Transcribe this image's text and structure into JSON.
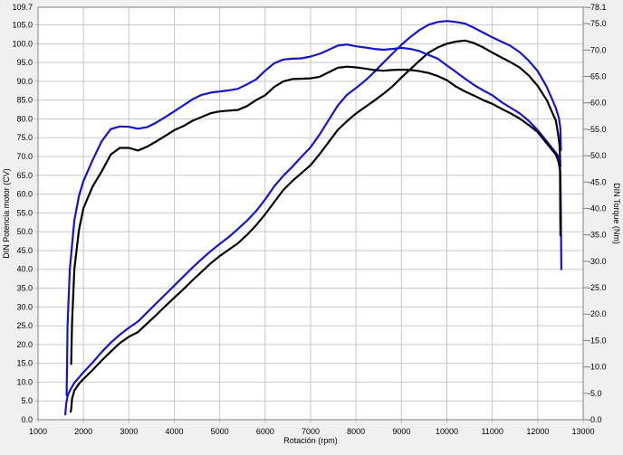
{
  "chart_data": {
    "type": "line",
    "title": "",
    "xlabel": "Rotación (rpm)",
    "ylabel": "DIN Potencia motor (CV)",
    "y2label": "DIN Torque (Nm)",
    "xlim": [
      1000,
      13000
    ],
    "ylim": [
      0,
      109.7
    ],
    "y2lim": [
      0,
      78.1
    ],
    "grid": true,
    "legend": "none",
    "x_ticks": [
      "1000",
      "2000",
      "3000",
      "4000",
      "5000",
      "6000",
      "7000",
      "8000",
      "9000",
      "10000",
      "11000",
      "12000",
      "13000"
    ],
    "y_ticks": [
      "0.0",
      "5.0",
      "10.0",
      "15.0",
      "20.0",
      "25.0",
      "30.0",
      "35.0",
      "40.0",
      "45.0",
      "50.0",
      "55.0",
      "60.0",
      "65.0",
      "70.0",
      "75.0",
      "80.0",
      "85.0",
      "90.0",
      "95.0",
      "100.0",
      "105.0",
      "109.7"
    ],
    "y2_ticks": [
      "0.0",
      "5.0",
      "10.0",
      "15.0",
      "20.0",
      "25.0",
      "30.0",
      "35.0",
      "40.0",
      "45.0",
      "50.0",
      "55.0",
      "60.0",
      "65.0",
      "70.0",
      "75.0",
      "78.1"
    ],
    "colors": {
      "series_a": "#1414c8",
      "series_b": "#000000"
    },
    "series": [
      {
        "color": "#1414c8",
        "axis": "right",
        "x": [
          1600,
          1620,
          1650,
          1700,
          1800,
          1900,
          2000,
          2200,
          2400,
          2600,
          2800,
          3000,
          3200,
          3400,
          3600,
          3800,
          4000,
          4200,
          4400,
          4600,
          4800,
          5000,
          5200,
          5400,
          5600,
          5800,
          6000,
          6200,
          6400,
          6600,
          6800,
          7000,
          7200,
          7400,
          7600,
          7800,
          8000,
          8200,
          8400,
          8600,
          8800,
          9000,
          9200,
          9400,
          9600,
          9800,
          10000,
          10200,
          10400,
          10600,
          10800,
          11000,
          11200,
          11400,
          11600,
          11800,
          12000,
          12200,
          12400,
          12470,
          12500,
          12510
        ],
        "y": [
          1.0,
          3.0,
          4.5,
          5.5,
          7.0,
          8.0,
          9.0,
          10.8,
          12.8,
          14.6,
          16.1,
          17.4,
          18.6,
          20.3,
          22.0,
          23.7,
          25.4,
          27.1,
          28.8,
          30.4,
          31.9,
          33.3,
          34.6,
          36.1,
          37.7,
          39.5,
          41.7,
          44.2,
          46.2,
          47.9,
          49.8,
          51.6,
          54.0,
          56.8,
          59.5,
          61.5,
          62.8,
          64.2,
          65.8,
          67.6,
          69.3,
          71.0,
          72.5,
          73.8,
          74.8,
          75.3,
          75.5,
          75.3,
          75.0,
          74.2,
          73.3,
          72.4,
          71.6,
          70.8,
          69.6,
          68.0,
          66.0,
          63.0,
          59.0,
          57.0,
          55.0,
          51.0
        ]
      },
      {
        "color": "#000000",
        "axis": "right",
        "x": [
          1720,
          1730,
          1750,
          1800,
          1900,
          2000,
          2200,
          2400,
          2600,
          2800,
          3000,
          3200,
          3400,
          3600,
          3800,
          4000,
          4200,
          4400,
          4600,
          4800,
          5000,
          5200,
          5400,
          5600,
          5800,
          6000,
          6200,
          6400,
          6600,
          6800,
          7000,
          7200,
          7400,
          7600,
          7800,
          8000,
          8200,
          8400,
          8600,
          8800,
          9000,
          9200,
          9400,
          9600,
          9800,
          10000,
          10200,
          10400,
          10600,
          10800,
          11000,
          11200,
          11400,
          11600,
          11800,
          12000,
          12200,
          12400,
          12450,
          12480,
          12500
        ],
        "y": [
          1.5,
          2.0,
          4.0,
          5.5,
          6.8,
          7.7,
          9.4,
          11.2,
          12.9,
          14.5,
          15.7,
          16.6,
          18.2,
          19.8,
          21.5,
          23.1,
          24.7,
          26.4,
          28.0,
          29.6,
          31.0,
          32.2,
          33.4,
          35.0,
          36.8,
          38.9,
          41.2,
          43.5,
          45.2,
          46.7,
          48.2,
          50.3,
          52.6,
          54.9,
          56.5,
          58.0,
          59.2,
          60.4,
          61.7,
          63.1,
          64.8,
          66.4,
          68.0,
          69.5,
          70.5,
          71.2,
          71.6,
          71.8,
          71.3,
          70.5,
          69.5,
          68.6,
          67.7,
          66.7,
          65.2,
          63.2,
          60.5,
          56.6,
          54.0,
          52.0,
          48.0
        ]
      },
      {
        "color": "#1414c8",
        "axis": "left",
        "x": [
          1630,
          1650,
          1700,
          1800,
          1900,
          2000,
          2200,
          2400,
          2600,
          2800,
          3000,
          3200,
          3400,
          3600,
          3800,
          4000,
          4200,
          4400,
          4600,
          4800,
          5000,
          5200,
          5400,
          5600,
          5800,
          6000,
          6200,
          6400,
          6600,
          6800,
          7000,
          7200,
          7400,
          7600,
          7800,
          8000,
          8200,
          8400,
          8600,
          8800,
          9000,
          9200,
          9400,
          9600,
          9800,
          10000,
          10200,
          10400,
          10600,
          10800,
          11000,
          11200,
          11400,
          11600,
          11800,
          12000,
          12200,
          12400,
          12480,
          12500,
          12510,
          12520
        ],
        "y": [
          6.5,
          25.0,
          40.0,
          53.0,
          59.5,
          63.5,
          69.0,
          74.0,
          77.3,
          78.0,
          77.9,
          77.4,
          77.8,
          79.0,
          80.5,
          82.0,
          83.6,
          85.2,
          86.4,
          87.0,
          87.3,
          87.6,
          88.0,
          89.2,
          90.5,
          92.8,
          94.8,
          95.8,
          96.0,
          96.1,
          96.6,
          97.3,
          98.4,
          99.5,
          99.8,
          99.3,
          99.0,
          98.6,
          98.4,
          98.6,
          98.9,
          98.6,
          98.0,
          97.0,
          96.0,
          94.2,
          92.5,
          90.7,
          89.0,
          87.6,
          86.3,
          84.5,
          83.0,
          81.5,
          79.5,
          77.0,
          74.0,
          71.0,
          69.5,
          65.0,
          55.0,
          40.0
        ]
      },
      {
        "color": "#000000",
        "axis": "left",
        "x": [
          1730,
          1750,
          1800,
          1900,
          2000,
          2200,
          2400,
          2600,
          2800,
          3000,
          3200,
          3400,
          3600,
          3800,
          4000,
          4200,
          4400,
          4600,
          4800,
          5000,
          5200,
          5400,
          5600,
          5800,
          6000,
          6200,
          6400,
          6600,
          6800,
          7000,
          7200,
          7400,
          7600,
          7800,
          8000,
          8200,
          8400,
          8600,
          8800,
          9000,
          9200,
          9400,
          9600,
          9800,
          10000,
          10200,
          10400,
          10600,
          10800,
          11000,
          11200,
          11400,
          11600,
          11800,
          12000,
          12200,
          12400,
          12460,
          12490,
          12500
        ],
        "y": [
          14.8,
          26.0,
          40.0,
          50.5,
          56.3,
          62.0,
          66.0,
          70.5,
          72.3,
          72.3,
          71.6,
          72.6,
          74.0,
          75.5,
          77.0,
          78.1,
          79.5,
          80.5,
          81.5,
          82.0,
          82.2,
          82.4,
          83.4,
          85.0,
          86.3,
          88.5,
          90.0,
          90.6,
          90.7,
          90.8,
          91.2,
          92.4,
          93.6,
          93.9,
          93.7,
          93.4,
          93.0,
          92.8,
          93.0,
          93.1,
          93.0,
          92.7,
          92.2,
          91.4,
          90.3,
          88.6,
          87.3,
          86.2,
          85.0,
          84.0,
          82.7,
          81.5,
          80.1,
          78.4,
          76.5,
          73.5,
          70.5,
          68.5,
          66.5,
          49.0
        ]
      }
    ]
  }
}
